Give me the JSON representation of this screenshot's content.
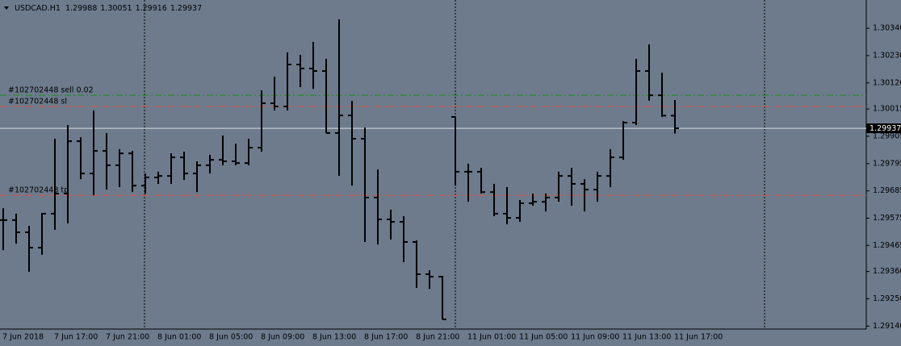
{
  "chart_data": {
    "type": "ohlc",
    "title": "USDCAD.H1",
    "categories": [
      "7 Jun 2018",
      null,
      null,
      null,
      "7 Jun 17:00",
      null,
      null,
      null,
      "7 Jun 21:00",
      null,
      null,
      null,
      "8 Jun 01:00",
      null,
      null,
      null,
      "8 Jun 05:00",
      null,
      null,
      null,
      "8 Jun 09:00",
      null,
      null,
      null,
      "8 Jun 13:00",
      null,
      null,
      null,
      "8 Jun 17:00",
      null,
      null,
      null,
      "8 Jun 21:00",
      null,
      null,
      null,
      "11 Jun 01:00",
      null,
      null,
      null,
      "11 Jun 05:00",
      null,
      null,
      null,
      "11 Jun 09:00",
      null,
      null,
      null,
      "11 Jun 13:00",
      null,
      null,
      null,
      "11 Jun 17:00"
    ],
    "open": [
      1.29567,
      1.29567,
      1.29518,
      1.29456,
      1.29593,
      1.29674,
      1.29885,
      1.29755,
      1.29846,
      1.29788,
      1.29836,
      1.29706,
      1.29739,
      1.29745,
      1.2982,
      1.29755,
      1.29788,
      1.2981,
      1.29804,
      1.29797,
      1.29859,
      1.30038,
      1.30025,
      1.30194,
      1.30178,
      1.30168,
      1.29918,
      1.29989,
      1.29895,
      1.29658,
      1.2957,
      1.2956,
      1.29479,
      1.29349,
      1.29339,
      1.29983,
      1.29762,
      1.29762,
      1.2968,
      1.29593,
      1.29576,
      1.29635,
      1.29641,
      1.29658,
      1.29745,
      1.29713,
      1.2969,
      1.29745,
      1.2982,
      1.2996,
      1.30168,
      1.3007,
      1.29988
    ],
    "high": [
      1.29615,
      1.29593,
      1.29544,
      1.29596,
      1.29895,
      1.2995,
      1.29901,
      1.30009,
      1.29918,
      1.29853,
      1.29846,
      1.29755,
      1.29762,
      1.29836,
      1.29843,
      1.29804,
      1.2983,
      1.29908,
      1.29875,
      1.29895,
      1.3009,
      1.30145,
      1.30243,
      1.30233,
      1.30285,
      1.30217,
      1.30376,
      1.30048,
      1.2994,
      1.29771,
      1.29609,
      1.29583,
      1.29485,
      1.29365,
      1.29342,
      1.29983,
      1.29794,
      1.29778,
      1.29713,
      1.297,
      1.29648,
      1.29674,
      1.29674,
      1.29762,
      1.29778,
      1.29732,
      1.29762,
      1.29853,
      1.29966,
      1.30217,
      1.30275,
      1.30161,
      1.30051
    ],
    "low": [
      1.29446,
      1.29472,
      1.29359,
      1.29427,
      1.29528,
      1.29554,
      1.29732,
      1.29667,
      1.2969,
      1.297,
      1.2968,
      1.29674,
      1.29713,
      1.29713,
      1.29729,
      1.2968,
      1.29755,
      1.29788,
      1.29788,
      1.29788,
      1.29843,
      1.30009,
      1.30009,
      1.30103,
      1.30096,
      1.29918,
      1.29745,
      1.29706,
      1.29479,
      1.29469,
      1.29489,
      1.29398,
      1.29294,
      1.2929,
      1.29167,
      1.29706,
      1.29641,
      1.29674,
      1.29583,
      1.2955,
      1.2956,
      1.29625,
      1.29602,
      1.29641,
      1.29625,
      1.29602,
      1.29641,
      1.297,
      1.2981,
      1.2995,
      1.30048,
      1.29983,
      1.29916
    ],
    "close": [
      1.29567,
      1.29518,
      1.29456,
      1.29593,
      1.29674,
      1.29885,
      1.29755,
      1.29846,
      1.29788,
      1.29836,
      1.29706,
      1.29739,
      1.29745,
      1.2982,
      1.29755,
      1.29788,
      1.2981,
      1.29804,
      1.29797,
      1.29859,
      1.30038,
      1.30025,
      1.30194,
      1.30178,
      1.30168,
      1.29918,
      1.29989,
      1.29895,
      1.29658,
      1.2957,
      1.2956,
      1.29479,
      1.29349,
      1.29339,
      1.29167,
      1.29762,
      1.29762,
      1.2968,
      1.29593,
      1.29576,
      1.29635,
      1.29641,
      1.29658,
      1.29745,
      1.29713,
      1.2969,
      1.29745,
      1.2982,
      1.2996,
      1.30168,
      1.3007,
      1.29988,
      1.29937
    ],
    "color": "#000000",
    "ylim": [
      1.29128,
      1.30454
    ],
    "yticks": [
      {
        "value": 1.3034,
        "label": "1.30340"
      },
      {
        "value": 1.3023,
        "label": "1.30230"
      },
      {
        "value": 1.3012,
        "label": "1.30120"
      },
      1.30015,
      1.29905,
      1.29795,
      1.29685,
      1.29575,
      1.29465,
      {
        "value": 1.2936,
        "label": "1.29360"
      },
      {
        "value": 1.2925,
        "label": "1.29250"
      },
      {
        "value": 1.2914,
        "label": "1.29140"
      }
    ],
    "levels": [
      {
        "label": "#102702448 sell 0.02",
        "value": 1.3007,
        "color": "#1e8c1e"
      },
      {
        "label": "#102702448 sl",
        "value": 1.30025,
        "color": "#e0503c"
      },
      {
        "label": "#102702448 tp",
        "value": 1.29667,
        "color": "#e0503c"
      }
    ],
    "bid": 1.29937,
    "bid_color": "#d8dde3"
  }
}
